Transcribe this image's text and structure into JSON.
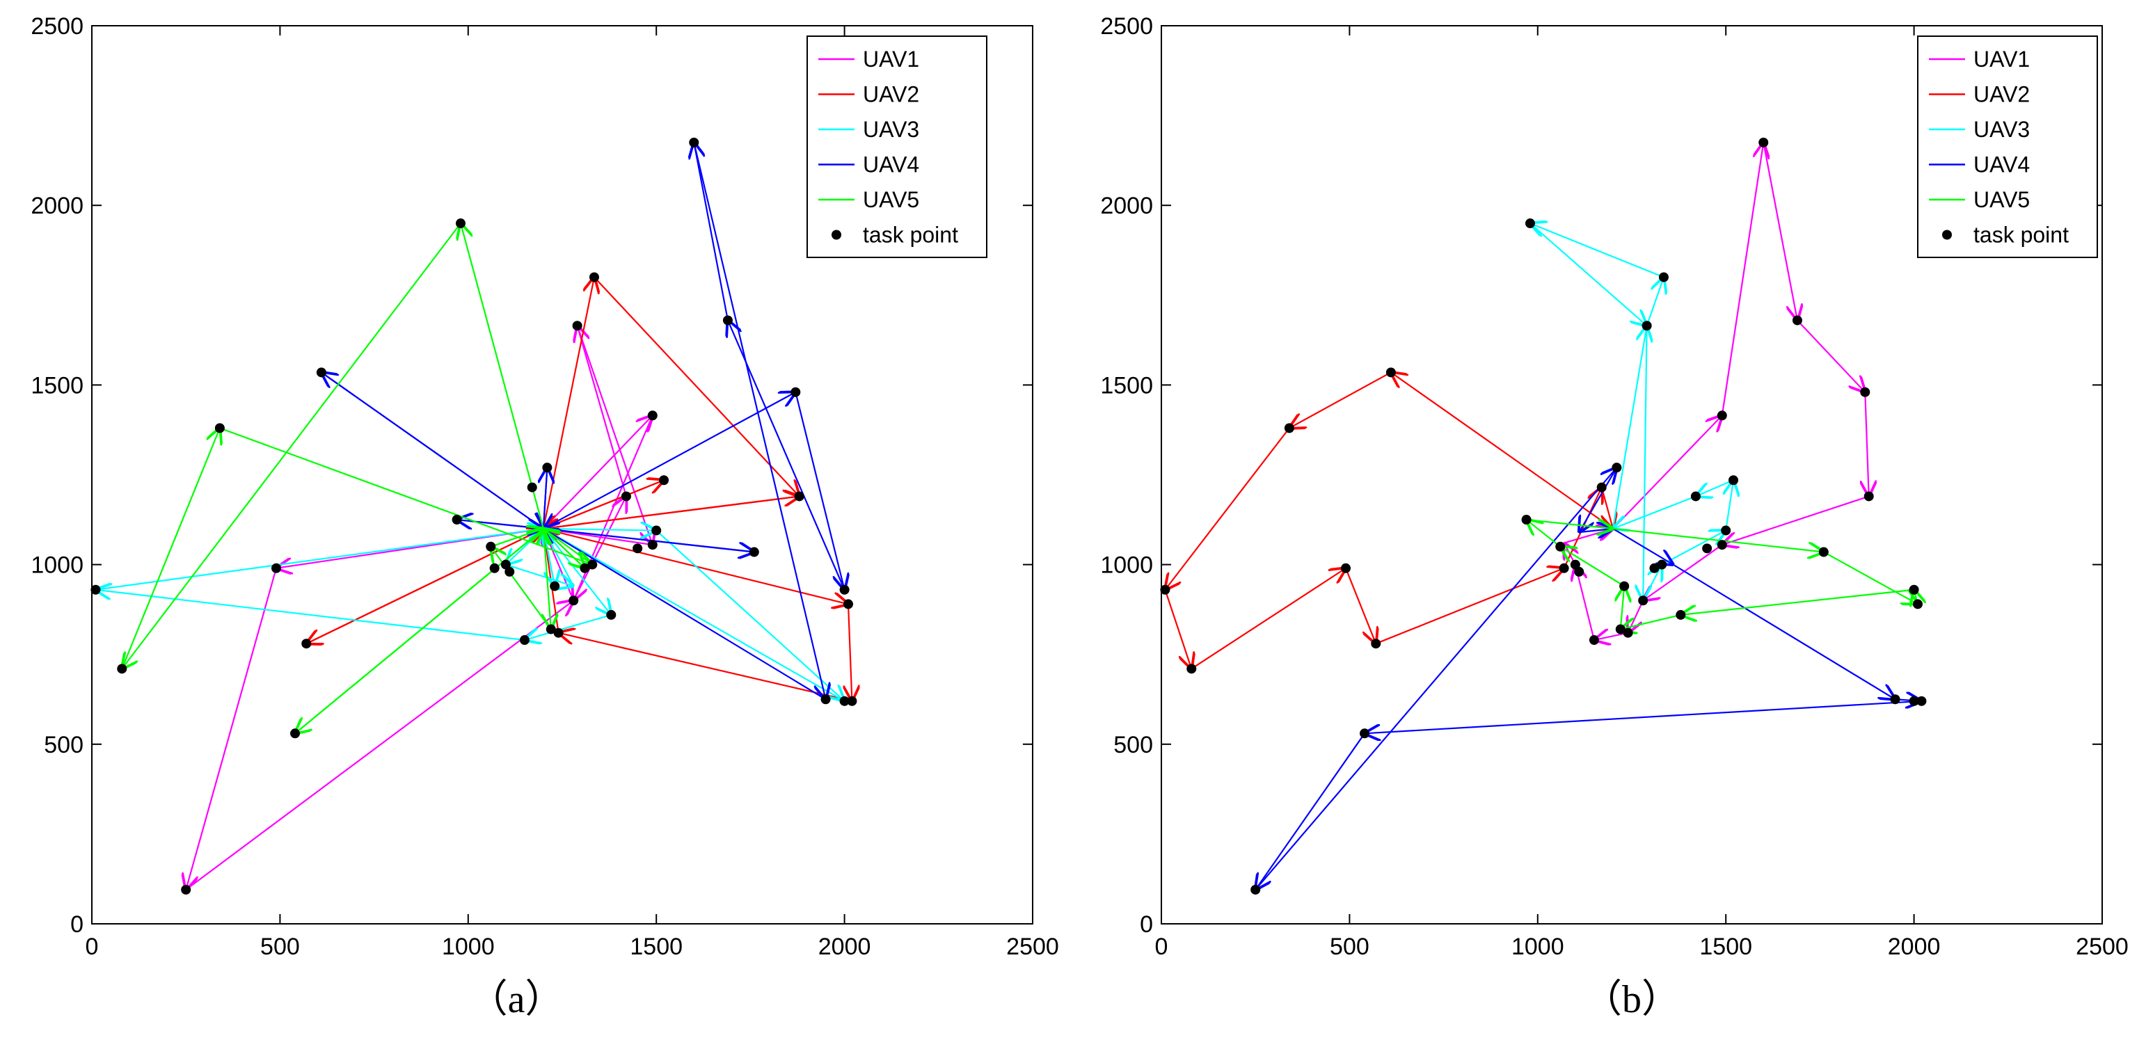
{
  "chart_data": [
    {
      "type": "line",
      "panel": "a",
      "caption": "（a）",
      "xlim": [
        0,
        2500
      ],
      "ylim": [
        0,
        2500
      ],
      "xticks": [
        0,
        500,
        1000,
        1500,
        2000,
        2500
      ],
      "yticks": [
        0,
        500,
        1000,
        1500,
        2000,
        2500
      ],
      "tick_labels": [
        "0",
        "500",
        "1000",
        "1500",
        "2000",
        "2500"
      ],
      "legend": [
        "UAV1",
        "UAV2",
        "UAV3",
        "UAV4",
        "UAV5",
        "task point"
      ],
      "legend_position": "top-right",
      "grid": false,
      "series": [
        {
          "name": "UAV1",
          "color": "#ff00ff",
          "path": [
            [
              1200,
              1100
            ],
            [
              1490,
              1415
            ],
            [
              1280,
              900
            ],
            [
              1200,
              1100
            ],
            [
              490,
              990
            ],
            [
              250,
              95
            ],
            [
              1280,
              900
            ],
            [
              1420,
              1190
            ],
            [
              1290,
              1665
            ],
            [
              1490,
              1055
            ],
            [
              1200,
              1100
            ]
          ]
        },
        {
          "name": "UAV2",
          "color": "#ff0000",
          "path": [
            [
              1200,
              1100
            ],
            [
              1880,
              1190
            ],
            [
              1200,
              1100
            ],
            [
              1335,
              1800
            ],
            [
              1880,
              1190
            ],
            [
              1200,
              1100
            ],
            [
              2010,
              890
            ],
            [
              2020,
              620
            ],
            [
              1240,
              810
            ],
            [
              1200,
              1100
            ],
            [
              570,
              780
            ],
            [
              1200,
              1100
            ],
            [
              1520,
              1235
            ],
            [
              1200,
              1100
            ]
          ]
        },
        {
          "name": "UAV3",
          "color": "#00ffff",
          "path": [
            [
              1200,
              1100
            ],
            [
              1500,
              1095
            ],
            [
              2000,
              620
            ],
            [
              1200,
              1100
            ],
            [
              1230,
              940
            ],
            [
              1200,
              1100
            ],
            [
              1380,
              860
            ],
            [
              1150,
              790
            ],
            [
              10,
              930
            ],
            [
              1200,
              1100
            ],
            [
              1100,
              1000
            ],
            [
              1280,
              940
            ],
            [
              1200,
              1100
            ]
          ]
        },
        {
          "name": "UAV4",
          "color": "#0000ff",
          "path": [
            [
              1200,
              1100
            ],
            [
              1870,
              1480
            ],
            [
              2000,
              930
            ],
            [
              1690,
              1680
            ],
            [
              1600,
              2175
            ],
            [
              1950,
              625
            ],
            [
              1200,
              1100
            ],
            [
              610,
              1535
            ],
            [
              1200,
              1100
            ],
            [
              970,
              1125
            ],
            [
              1200,
              1100
            ],
            [
              1760,
              1035
            ],
            [
              1200,
              1100
            ],
            [
              1210,
              1270
            ],
            [
              1200,
              1100
            ]
          ]
        },
        {
          "name": "UAV5",
          "color": "#00ff00",
          "path": [
            [
              1200,
              1100
            ],
            [
              980,
              1950
            ],
            [
              80,
              710
            ],
            [
              340,
              1380
            ],
            [
              1330,
              1000
            ],
            [
              1200,
              1100
            ],
            [
              540,
              530
            ],
            [
              1200,
              1100
            ],
            [
              1220,
              820
            ],
            [
              1060,
              1050
            ],
            [
              1200,
              1100
            ],
            [
              1310,
              990
            ],
            [
              1200,
              1100
            ]
          ]
        }
      ],
      "task_points": [
        [
          250,
          95
        ],
        [
          540,
          530
        ],
        [
          80,
          710
        ],
        [
          10,
          930
        ],
        [
          490,
          990
        ],
        [
          570,
          780
        ],
        [
          340,
          1380
        ],
        [
          610,
          1535
        ],
        [
          980,
          1950
        ],
        [
          970,
          1125
        ],
        [
          1060,
          1050
        ],
        [
          1070,
          990
        ],
        [
          1100,
          1000
        ],
        [
          1110,
          980
        ],
        [
          1150,
          790
        ],
        [
          1170,
          1215
        ],
        [
          1210,
          1270
        ],
        [
          1220,
          820
        ],
        [
          1230,
          940
        ],
        [
          1240,
          810
        ],
        [
          1280,
          900
        ],
        [
          1290,
          1665
        ],
        [
          1310,
          990
        ],
        [
          1330,
          1000
        ],
        [
          1335,
          1800
        ],
        [
          1380,
          860
        ],
        [
          1420,
          1190
        ],
        [
          1450,
          1045
        ],
        [
          1490,
          1055
        ],
        [
          1490,
          1415
        ],
        [
          1500,
          1095
        ],
        [
          1520,
          1235
        ],
        [
          1600,
          2175
        ],
        [
          1690,
          1680
        ],
        [
          1760,
          1035
        ],
        [
          1870,
          1480
        ],
        [
          1880,
          1190
        ],
        [
          1950,
          625
        ],
        [
          2000,
          930
        ],
        [
          2010,
          890
        ],
        [
          2020,
          620
        ],
        [
          2000,
          620
        ]
      ]
    },
    {
      "type": "line",
      "panel": "b",
      "caption": "（b）",
      "xlim": [
        0,
        2500
      ],
      "ylim": [
        0,
        2500
      ],
      "xticks": [
        0,
        500,
        1000,
        1500,
        2000,
        2500
      ],
      "yticks": [
        0,
        500,
        1000,
        1500,
        2000,
        2500
      ],
      "tick_labels": [
        "0",
        "500",
        "1000",
        "1500",
        "2000",
        "2500"
      ],
      "legend": [
        "UAV1",
        "UAV2",
        "UAV3",
        "UAV4",
        "UAV5",
        "task point"
      ],
      "legend_position": "top-right",
      "grid": false,
      "series": [
        {
          "name": "UAV1",
          "color": "#ff00ff",
          "path": [
            [
              1200,
              1100
            ],
            [
              1490,
              1415
            ],
            [
              1600,
              2175
            ],
            [
              1690,
              1680
            ],
            [
              1870,
              1480
            ],
            [
              1880,
              1190
            ],
            [
              1490,
              1055
            ],
            [
              1280,
              900
            ],
            [
              1240,
              810
            ],
            [
              1150,
              790
            ],
            [
              1100,
              1000
            ],
            [
              1070,
              1060
            ],
            [
              1200,
              1100
            ]
          ]
        },
        {
          "name": "UAV2",
          "color": "#ff0000",
          "path": [
            [
              1200,
              1100
            ],
            [
              610,
              1535
            ],
            [
              340,
              1380
            ],
            [
              10,
              930
            ],
            [
              80,
              710
            ],
            [
              490,
              990
            ],
            [
              570,
              780
            ],
            [
              1070,
              990
            ],
            [
              1170,
              1215
            ],
            [
              1200,
              1100
            ]
          ]
        },
        {
          "name": "UAV3",
          "color": "#00ffff",
          "path": [
            [
              1200,
              1100
            ],
            [
              1290,
              1665
            ],
            [
              1335,
              1800
            ],
            [
              980,
              1950
            ],
            [
              1290,
              1665
            ],
            [
              1280,
              900
            ],
            [
              1330,
              1000
            ],
            [
              1500,
              1095
            ],
            [
              1520,
              1235
            ],
            [
              1420,
              1190
            ],
            [
              1200,
              1100
            ]
          ]
        },
        {
          "name": "UAV4",
          "color": "#0000ff",
          "path": [
            [
              1200,
              1100
            ],
            [
              1360,
              1000
            ],
            [
              1950,
              625
            ],
            [
              2020,
              620
            ],
            [
              540,
              530
            ],
            [
              250,
              95
            ],
            [
              1210,
              1270
            ],
            [
              1110,
              1090
            ],
            [
              1200,
              1100
            ]
          ]
        },
        {
          "name": "UAV5",
          "color": "#00ff00",
          "path": [
            [
              1200,
              1100
            ],
            [
              1760,
              1035
            ],
            [
              2010,
              890
            ],
            [
              2000,
              930
            ],
            [
              1380,
              860
            ],
            [
              1220,
              820
            ],
            [
              1230,
              940
            ],
            [
              1060,
              1050
            ],
            [
              970,
              1125
            ],
            [
              1200,
              1100
            ]
          ]
        }
      ],
      "task_points": [
        [
          250,
          95
        ],
        [
          540,
          530
        ],
        [
          80,
          710
        ],
        [
          10,
          930
        ],
        [
          490,
          990
        ],
        [
          570,
          780
        ],
        [
          340,
          1380
        ],
        [
          610,
          1535
        ],
        [
          980,
          1950
        ],
        [
          970,
          1125
        ],
        [
          1060,
          1050
        ],
        [
          1070,
          990
        ],
        [
          1100,
          1000
        ],
        [
          1110,
          980
        ],
        [
          1150,
          790
        ],
        [
          1170,
          1215
        ],
        [
          1210,
          1270
        ],
        [
          1220,
          820
        ],
        [
          1230,
          940
        ],
        [
          1240,
          810
        ],
        [
          1280,
          900
        ],
        [
          1290,
          1665
        ],
        [
          1310,
          990
        ],
        [
          1330,
          1000
        ],
        [
          1335,
          1800
        ],
        [
          1380,
          860
        ],
        [
          1420,
          1190
        ],
        [
          1450,
          1045
        ],
        [
          1490,
          1055
        ],
        [
          1490,
          1415
        ],
        [
          1500,
          1095
        ],
        [
          1520,
          1235
        ],
        [
          1600,
          2175
        ],
        [
          1690,
          1680
        ],
        [
          1760,
          1035
        ],
        [
          1870,
          1480
        ],
        [
          1880,
          1190
        ],
        [
          1950,
          625
        ],
        [
          2000,
          930
        ],
        [
          2010,
          890
        ],
        [
          2020,
          620
        ],
        [
          2000,
          620
        ]
      ]
    }
  ]
}
